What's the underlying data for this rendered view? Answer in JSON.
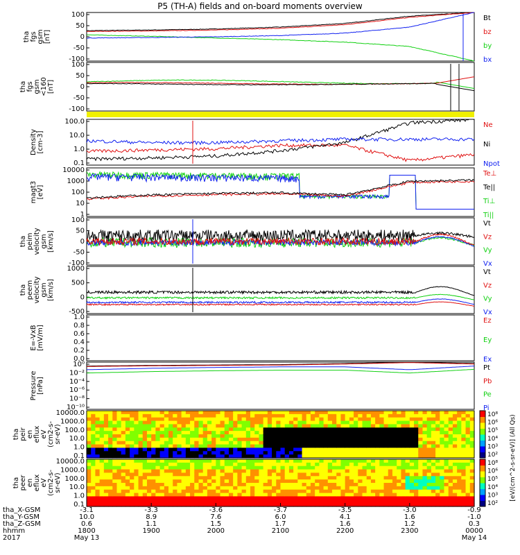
{
  "title": "P5 (TH-A) fields and on-board moments overview",
  "year": "2017",
  "colors": {
    "black": "#000000",
    "red": "#e01010",
    "green": "#10d010",
    "blue": "#1020f0",
    "yellow": "#f0f000"
  },
  "panels": [
    {
      "id": "bfgs",
      "ylabel": [
        "tha",
        "fgs",
        "gsm",
        "[nT]"
      ],
      "ticks": [
        "100",
        "50",
        "0",
        "-50",
        "-100"
      ],
      "legend": [
        {
          "label": "Bt",
          "color": "#000000"
        },
        {
          "label": "bz",
          "color": "#e01010"
        },
        {
          "label": "by",
          "color": "#10d010"
        },
        {
          "label": "bx",
          "color": "#1020f0"
        }
      ]
    },
    {
      "id": "bfgs2",
      "ylabel": [
        "tha",
        "fgs",
        "gsm",
        "<160",
        "[nT]"
      ],
      "ticks": [
        "100",
        "50",
        "0",
        "-50",
        "-100"
      ],
      "legend": []
    },
    {
      "id": "density",
      "ylabel": [
        "Density",
        "[cm-3]"
      ],
      "ticks": [
        "100.0",
        "10.0",
        "1.0",
        "0.1"
      ],
      "legend": [
        {
          "label": "Ne",
          "color": "#e01010"
        },
        {
          "label": "Ni",
          "color": "#000000"
        },
        {
          "label": "Npot",
          "color": "#1020f0"
        }
      ]
    },
    {
      "id": "temp",
      "ylabel": [
        "magt3",
        "[eV]"
      ],
      "ticks": [
        "10000",
        "1000",
        "100",
        "10",
        "1"
      ],
      "legend": [
        {
          "label": "Te⊥",
          "color": "#e01010"
        },
        {
          "label": "Te||",
          "color": "#000000"
        },
        {
          "label": "Ti⊥",
          "color": "#10d010"
        },
        {
          "label": "Ti||",
          "color": "#10d010"
        }
      ]
    },
    {
      "id": "vi",
      "ylabel": [
        "tha",
        "peim",
        "velocity",
        "gsm",
        "[km/s]"
      ],
      "ticks": [
        "100",
        "50",
        "0",
        "-50",
        "-100"
      ],
      "legend": [
        {
          "label": "Vt",
          "color": "#000000"
        },
        {
          "label": "Vz",
          "color": "#e01010"
        },
        {
          "label": "Vy",
          "color": "#10d010"
        },
        {
          "label": "Vx",
          "color": "#1020f0"
        }
      ]
    },
    {
      "id": "ve",
      "ylabel": [
        "tha",
        "peem",
        "velocity",
        "gsm",
        "[km/s]"
      ],
      "ticks": [
        "1000",
        "500",
        "0",
        "-500"
      ],
      "legend": [
        {
          "label": "Vt",
          "color": "#000000"
        },
        {
          "label": "Vz",
          "color": "#e01010"
        },
        {
          "label": "Vy",
          "color": "#10d010"
        },
        {
          "label": "Vx",
          "color": "#1020f0"
        }
      ]
    },
    {
      "id": "efield",
      "ylabel": [
        "E=-VxB",
        "[mV/m]"
      ],
      "ticks": [
        "1.0",
        "0.8",
        "0.6",
        "0.4",
        "0.2",
        "0.0"
      ],
      "legend": [
        {
          "label": "Ez",
          "color": "#e01010"
        },
        {
          "label": "Ey",
          "color": "#10d010"
        },
        {
          "label": "Ex",
          "color": "#1020f0"
        }
      ]
    },
    {
      "id": "pressure",
      "ylabel": [
        "Pressure",
        "[nPa]"
      ],
      "ticks": [
        "10⁰",
        "10⁻²",
        "10⁻⁴",
        "10⁻⁶",
        "10⁻⁸",
        "10⁻¹⁰"
      ],
      "legend": [
        {
          "label": "Pt",
          "color": "#000000"
        },
        {
          "label": "Pb",
          "color": "#e01010"
        },
        {
          "label": "Pe",
          "color": "#10d010"
        },
        {
          "label": "Pi",
          "color": "#1020f0"
        }
      ]
    },
    {
      "id": "ion_spec",
      "ylabel": [
        "tha",
        "peir",
        "en",
        "eflux",
        "eV",
        "(cm2-s-",
        "sr-eV)"
      ],
      "ticks": [
        "10000.0",
        "1000.0",
        "100.0",
        "10.0",
        "1.0",
        "0.1"
      ],
      "legend": []
    },
    {
      "id": "elec_spec",
      "ylabel": [
        "tha",
        "peer",
        "en",
        "eflux",
        "eV",
        "(cm2-s-",
        "sr-eV)"
      ],
      "ticks": [
        "10000.0",
        "1000.0",
        "100.0",
        "10.0",
        "1.0",
        "0.1"
      ],
      "legend": []
    }
  ],
  "colorbars": [
    {
      "ticks": [
        "10⁸",
        "10⁶",
        "10⁵",
        "10⁴",
        "10³",
        "10²"
      ]
    },
    {
      "ticks": [
        "10⁸",
        "10⁶",
        "10⁵",
        "10⁴",
        "10³",
        "10²"
      ]
    }
  ],
  "colorbar_label": "[eV/(cm^2-s-sr-eV)] (All Qs)",
  "xaxis": {
    "row_labels": [
      "tha_X-GSM",
      "tha_Y-GSM",
      "tha_Z-GSM",
      "hhmm"
    ],
    "columns": [
      {
        "x": "-3.1",
        "y": "10.0",
        "z": "0.6",
        "hhmm": "1800",
        "date": "May 13"
      },
      {
        "x": "-3.3",
        "y": "8.9",
        "z": "1.1",
        "hhmm": "1900",
        "date": ""
      },
      {
        "x": "-3.6",
        "y": "7.6",
        "z": "1.5",
        "hhmm": "2000",
        "date": ""
      },
      {
        "x": "-3.7",
        "y": "6.0",
        "z": "1.7",
        "hhmm": "2100",
        "date": ""
      },
      {
        "x": "-3.5",
        "y": "4.1",
        "z": "1.6",
        "hhmm": "2200",
        "date": ""
      },
      {
        "x": "-3.0",
        "y": "1.6",
        "z": "1.2",
        "hhmm": "2300",
        "date": ""
      },
      {
        "x": "-0.9",
        "y": "-1.0",
        "z": "0.3",
        "hhmm": "0000",
        "date": "May 14"
      }
    ]
  },
  "chart_data": {
    "type": "line",
    "title": "P5 (TH-A) fields and on-board moments overview",
    "x": [
      "1800",
      "1900",
      "2000",
      "2100",
      "2200",
      "2300",
      "0000"
    ],
    "series": [
      {
        "name": "Bt",
        "panel": "bfgs",
        "values": [
          25,
          28,
          32,
          40,
          55,
          85,
          100
        ]
      },
      {
        "name": "bz",
        "panel": "bfgs",
        "values": [
          22,
          24,
          28,
          35,
          50,
          80,
          100
        ]
      },
      {
        "name": "by",
        "panel": "bfgs",
        "values": [
          8,
          2,
          -5,
          -12,
          -22,
          -40,
          -100
        ]
      },
      {
        "name": "bx",
        "panel": "bfgs",
        "values": [
          -5,
          -3,
          0,
          5,
          15,
          40,
          100
        ]
      },
      {
        "name": "Ne",
        "panel": "density",
        "values": [
          0.8,
          1.0,
          1.2,
          2.0,
          2.0,
          0.2,
          0.5
        ]
      },
      {
        "name": "Ni",
        "panel": "density",
        "values": [
          0.25,
          0.3,
          0.4,
          0.9,
          3.0,
          60,
          100
        ]
      },
      {
        "name": "Npot",
        "panel": "density",
        "values": [
          4,
          3,
          3,
          4,
          5,
          5,
          5
        ]
      },
      {
        "name": "Te||",
        "panel": "temp",
        "values": [
          35,
          60,
          80,
          90,
          60,
          800,
          1000
        ]
      },
      {
        "name": "Ti||",
        "panel": "temp",
        "values": [
          3000,
          3000,
          2500,
          2000,
          500,
          4,
          4
        ]
      },
      {
        "name": "Pt",
        "panel": "pressure",
        "values": [
          0.15,
          0.2,
          0.25,
          0.3,
          0.5,
          1.0,
          0.5
        ]
      },
      {
        "name": "Pe",
        "panel": "pressure",
        "values": [
          0.005,
          0.01,
          0.015,
          0.02,
          0.02,
          0.005,
          0.03
        ]
      }
    ],
    "panel_ranges": {
      "bfgs": [
        -100,
        100
      ],
      "density": [
        0.1,
        100
      ],
      "temp": [
        1,
        10000
      ],
      "pressure": [
        1e-10,
        1
      ]
    }
  }
}
